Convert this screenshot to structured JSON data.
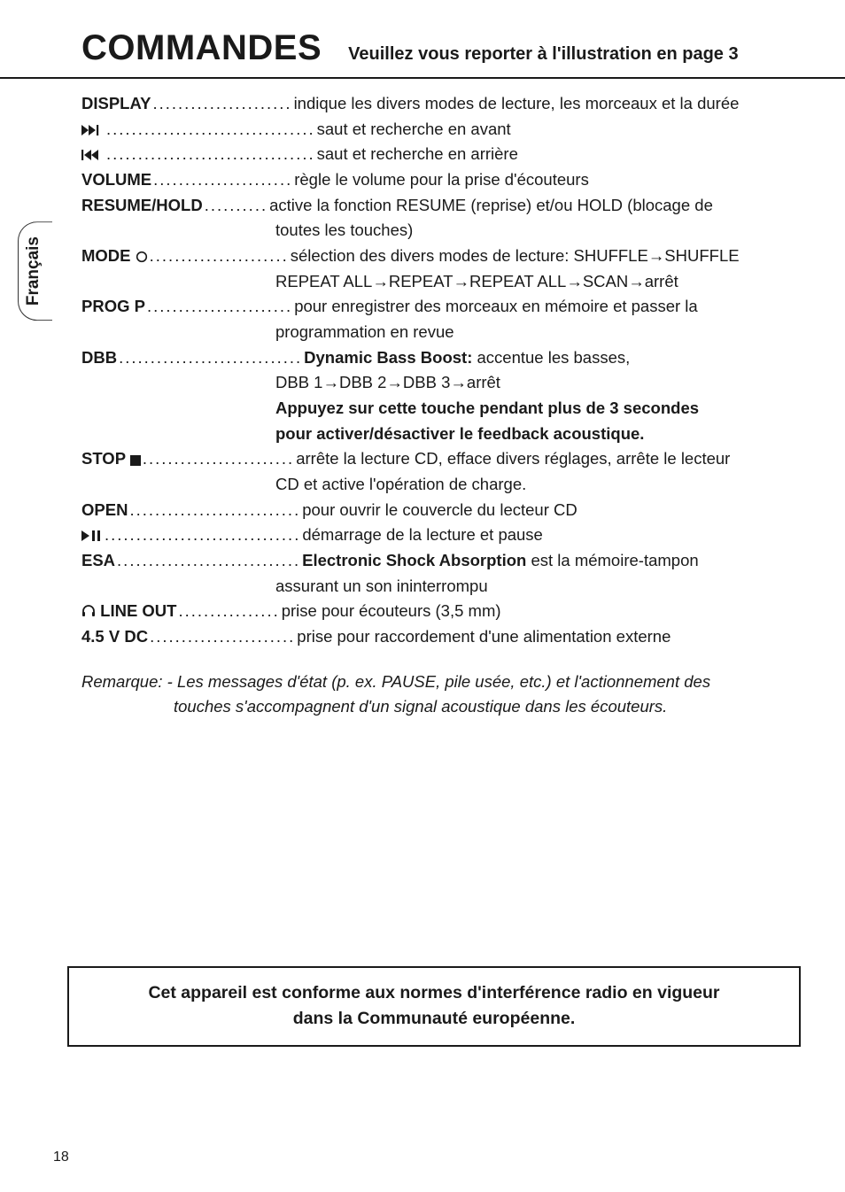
{
  "header": {
    "title": "COMMANDES",
    "subtitle": "Veuillez vous reporter à l'illustration en page 3"
  },
  "side_tab": "Français",
  "page_number": "18",
  "rows": [
    {
      "label": "DISPLAY",
      "label_bold": true,
      "dots": "......................",
      "desc": "indique les divers modes de lecture, les morceaux et la durée",
      "cont": []
    },
    {
      "label": "▶▶|",
      "label_bold": false,
      "dots": ".................................",
      "desc": "saut et recherche en avant",
      "cont": []
    },
    {
      "label": "|◀◀",
      "label_bold": false,
      "dots": ".................................",
      "desc": "saut et recherche en arrière",
      "cont": []
    },
    {
      "label": "VOLUME",
      "label_bold": true,
      "dots": "......................",
      "desc": "règle le volume pour la prise d'écouteurs",
      "cont": []
    },
    {
      "label": "RESUME/HOLD",
      "label_bold": true,
      "dots": "..........",
      "desc": "active la fonction RESUME (reprise) et/ou HOLD (blocage de",
      "cont": [
        {
          "text": "toutes les touches)",
          "bold": false
        }
      ]
    },
    {
      "label": "MODE ○",
      "label_bold": true,
      "dots": "......................",
      "desc": "sélection des divers modes de lecture: SHUFFLE→SHUFFLE",
      "cont": [
        {
          "text": "REPEAT ALL→REPEAT→REPEAT ALL→SCAN→arrêt",
          "bold": false
        }
      ]
    },
    {
      "label": "PROG P",
      "label_bold": true,
      "dots": ".......................",
      "desc": "pour enregistrer des morceaux en mémoire et passer la",
      "cont": [
        {
          "text": "programmation en revue",
          "bold": false
        }
      ]
    },
    {
      "label": "DBB",
      "label_bold": true,
      "dots": ".............................",
      "desc_html": true,
      "desc": "<span class='bold'>Dynamic Bass Boost:</span> accentue les basses,",
      "cont": [
        {
          "text": "DBB 1→DBB 2→DBB 3→arrêt",
          "bold": false
        },
        {
          "text": "Appuyez sur cette touche pendant plus de 3 secondes",
          "bold": true
        },
        {
          "text": "pour activer/désactiver le feedback acoustique.",
          "bold": true
        }
      ]
    },
    {
      "label": "STOP ■",
      "label_bold": true,
      "dots": "........................",
      "desc": "arrête la lecture CD, efface divers réglages, arrête le lecteur",
      "cont": [
        {
          "text": "CD et active l'opération de charge.",
          "bold": false
        }
      ]
    },
    {
      "label": "OPEN",
      "label_bold": true,
      "dots": "...........................",
      "desc": "pour ouvrir le couvercle du lecteur CD",
      "cont": []
    },
    {
      "label": "▶II",
      "label_bold": false,
      "dots": "...............................",
      "desc": "démarrage de la lecture et pause",
      "cont": []
    },
    {
      "label": "ESA",
      "label_bold": true,
      "dots": ".............................",
      "desc_html": true,
      "desc": "<span class='bold'>Electronic Shock Absorption</span> est la mémoire-tampon",
      "cont": [
        {
          "text": "assurant un son ininterrompu",
          "bold": false
        }
      ]
    },
    {
      "label": "HP_LINE OUT",
      "label_bold": true,
      "dots": "................",
      "desc": "prise pour écouteurs (3,5 mm)",
      "cont": []
    },
    {
      "label": "4.5 V DC",
      "label_bold": true,
      "dots": ".......................",
      "desc": "prise pour raccordement d'une alimentation externe",
      "cont": []
    }
  ],
  "remark": {
    "line1": "Remarque: - Les messages d'état (p. ex. PAUSE, pile usée, etc.) et l'actionnement des",
    "line2": "touches s'accompagnent d'un signal acoustique dans les écouteurs."
  },
  "compliance": {
    "line1": "Cet appareil est conforme aux normes d'interférence radio en vigueur",
    "line2": "dans la Communauté européenne."
  },
  "colors": {
    "text": "#1a1a1a",
    "background": "#ffffff",
    "border": "#1a1a1a"
  }
}
